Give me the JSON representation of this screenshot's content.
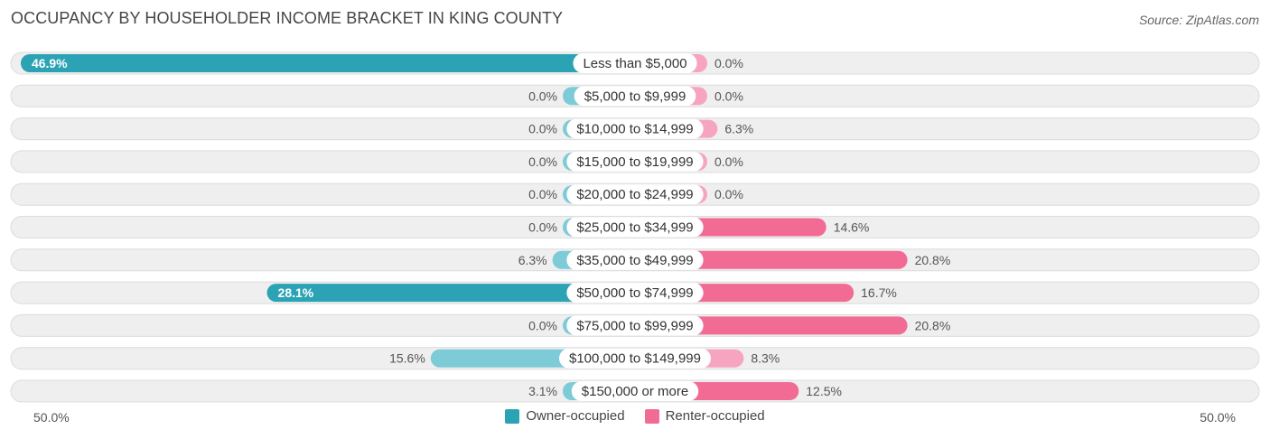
{
  "header": {
    "title": "OCCUPANCY BY HOUSEHOLDER INCOME BRACKET IN KING COUNTY",
    "source": "Source: ZipAtlas.com"
  },
  "axis": {
    "left_label": "50.0%",
    "right_label": "50.0%"
  },
  "legend": {
    "owner_label": "Owner-occupied",
    "renter_label": "Renter-occupied"
  },
  "colors": {
    "owner_strong": "#2ba3b5",
    "owner_light": "#7ccbd6",
    "renter_strong": "#f26b95",
    "renter_light": "#f6a4bf",
    "row_bg": "#efefef",
    "row_border": "#dcdcdc"
  },
  "chart_data": {
    "type": "bar",
    "orientation": "horizontal-diverging",
    "title": "OCCUPANCY BY HOUSEHOLDER INCOME BRACKET IN KING COUNTY",
    "xlim": [
      -50,
      50
    ],
    "categories": [
      "Less than $5,000",
      "$5,000 to $9,999",
      "$10,000 to $14,999",
      "$15,000 to $19,999",
      "$20,000 to $24,999",
      "$25,000 to $34,999",
      "$35,000 to $49,999",
      "$50,000 to $74,999",
      "$75,000 to $99,999",
      "$100,000 to $149,999",
      "$150,000 or more"
    ],
    "series": [
      {
        "name": "Owner-occupied",
        "values": [
          46.9,
          0.0,
          0.0,
          0.0,
          0.0,
          0.0,
          6.3,
          28.1,
          0.0,
          15.6,
          3.1
        ],
        "labels": [
          "46.9%",
          "0.0%",
          "0.0%",
          "0.0%",
          "0.0%",
          "0.0%",
          "6.3%",
          "28.1%",
          "0.0%",
          "15.6%",
          "3.1%"
        ]
      },
      {
        "name": "Renter-occupied",
        "values": [
          0.0,
          0.0,
          6.3,
          0.0,
          0.0,
          14.6,
          20.8,
          16.7,
          20.8,
          8.3,
          12.5
        ],
        "labels": [
          "0.0%",
          "0.0%",
          "6.3%",
          "0.0%",
          "0.0%",
          "14.6%",
          "20.8%",
          "16.7%",
          "20.8%",
          "8.3%",
          "12.5%"
        ]
      }
    ]
  }
}
